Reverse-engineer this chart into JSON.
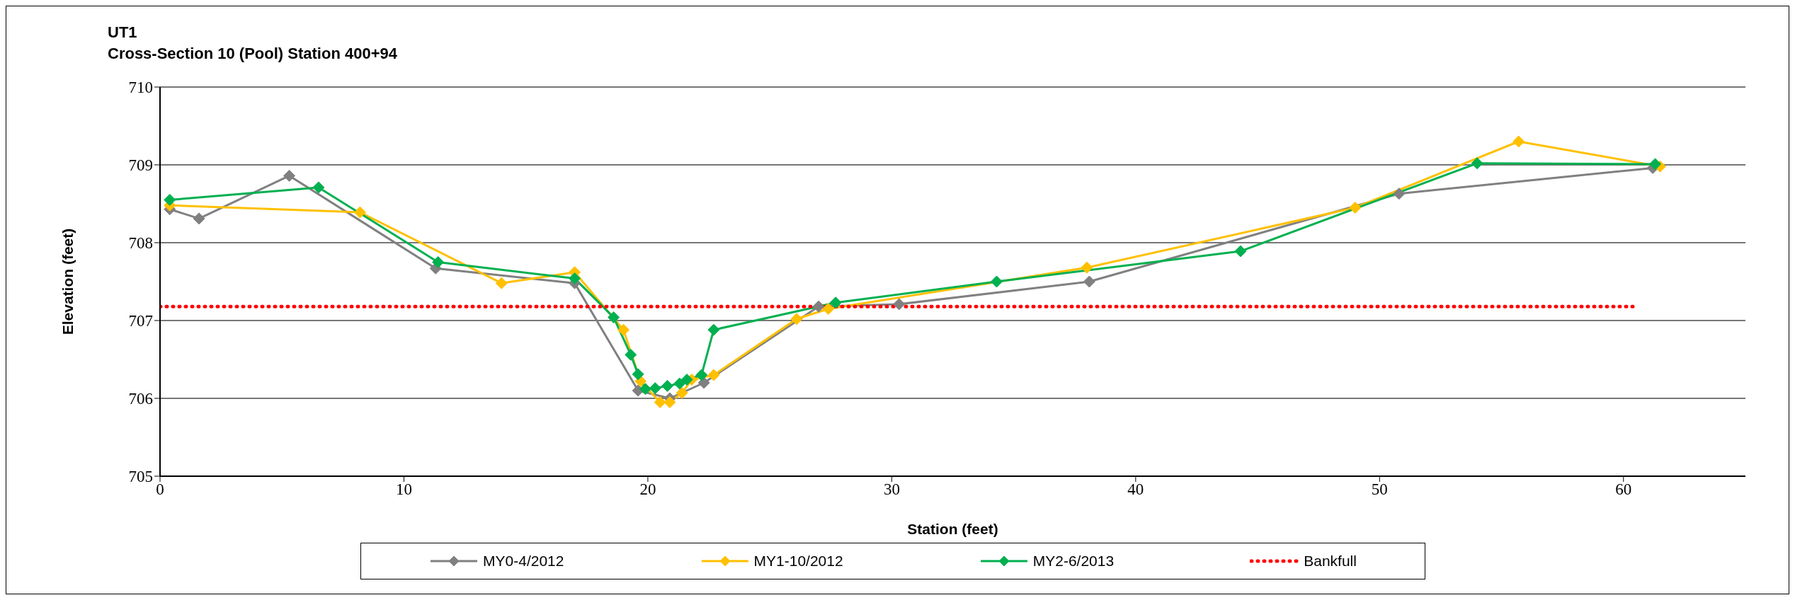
{
  "chart_data": {
    "type": "line",
    "title": "UT1",
    "subtitle": "Cross-Section 10 (Pool) Station 400+94",
    "xlabel": "Station (feet)",
    "ylabel": "Elevation (feet)",
    "xlim": [
      0,
      65
    ],
    "xticks": [
      0,
      10,
      20,
      30,
      40,
      50,
      60
    ],
    "ylim": [
      705,
      710
    ],
    "yticks": [
      705,
      706,
      707,
      708,
      709,
      710
    ],
    "grid": "y",
    "legend": "bottom",
    "series": [
      {
        "name": "MY0-4/2012",
        "color": "#808080",
        "marker": "diamond",
        "line_style": "solid",
        "x": [
          0.4,
          1.6,
          5.3,
          11.3,
          17.0,
          19.6,
          20.9,
          22.3,
          27.0,
          30.3,
          38.1,
          50.8,
          61.2
        ],
        "values": [
          708.43,
          708.31,
          708.86,
          707.67,
          707.48,
          706.1,
          706.0,
          706.2,
          707.18,
          707.21,
          707.5,
          708.63,
          708.96
        ]
      },
      {
        "name": "MY1-10/2012",
        "color": "#ffc000",
        "marker": "diamond",
        "line_style": "solid",
        "x": [
          0.4,
          8.2,
          14.0,
          17.0,
          19.0,
          19.7,
          20.5,
          20.9,
          21.4,
          21.8,
          22.7,
          26.1,
          27.4,
          38.0,
          49.0,
          55.7,
          61.5
        ],
        "values": [
          708.48,
          708.39,
          707.48,
          707.62,
          706.88,
          706.22,
          705.95,
          705.95,
          706.07,
          706.24,
          706.3,
          707.02,
          707.15,
          707.68,
          708.45,
          709.3,
          708.98
        ]
      },
      {
        "name": "MY2-6/2013",
        "color": "#00b050",
        "marker": "diamond",
        "line_style": "solid",
        "x": [
          0.4,
          6.5,
          11.4,
          17.0,
          18.6,
          19.3,
          19.6,
          19.9,
          20.3,
          20.8,
          21.3,
          21.6,
          22.2,
          22.7,
          27.7,
          34.3,
          44.3,
          54.0,
          61.3
        ],
        "values": [
          708.55,
          708.71,
          707.75,
          707.54,
          707.04,
          706.56,
          706.31,
          706.12,
          706.13,
          706.16,
          706.19,
          706.24,
          706.3,
          706.88,
          707.23,
          707.5,
          707.89,
          709.02,
          709.01
        ]
      },
      {
        "name": "Bankfull",
        "color": "#ff0000",
        "marker": "none",
        "line_style": "dotted",
        "x": [
          0,
          60.5
        ],
        "values": [
          707.18,
          707.18
        ]
      }
    ]
  }
}
